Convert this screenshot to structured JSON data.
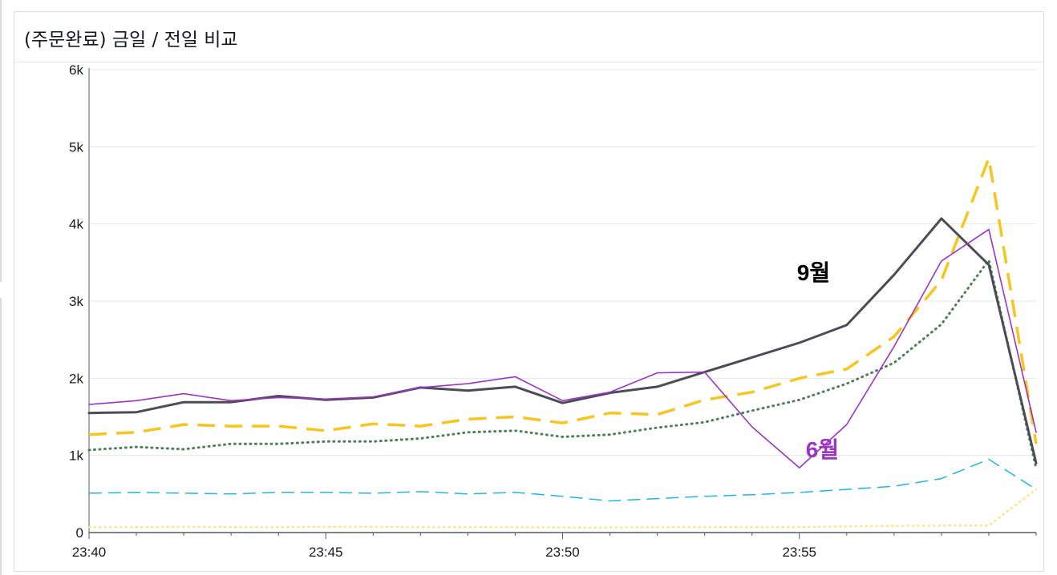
{
  "panel": {
    "title": "(주문완료) 금일 / 전일 비교"
  },
  "chart_data": {
    "type": "line",
    "title": "(주문완료) 금일 / 전일 비교",
    "xlabel": "",
    "ylabel": "",
    "x": [
      "23:40",
      "23:41",
      "23:42",
      "23:43",
      "23:44",
      "23:45",
      "23:46",
      "23:47",
      "23:48",
      "23:49",
      "23:50",
      "23:51",
      "23:52",
      "23:53",
      "23:54",
      "23:55",
      "23:56",
      "23:57",
      "23:58",
      "23:59",
      "24:00"
    ],
    "x_ticks": [
      "23:40",
      "23:45",
      "23:50",
      "23:55"
    ],
    "y_ticks": [
      {
        "value": 0,
        "label": "0"
      },
      {
        "value": 1000,
        "label": "1k"
      },
      {
        "value": 2000,
        "label": "2k"
      },
      {
        "value": 3000,
        "label": "3k"
      },
      {
        "value": 4000,
        "label": "4k"
      },
      {
        "value": 5000,
        "label": "5k"
      },
      {
        "value": 6000,
        "label": "6k"
      }
    ],
    "ylim": [
      0,
      6000
    ],
    "grid": true,
    "series": [
      {
        "color": "#fde68a",
        "style": "dotted",
        "values": [
          70,
          70,
          75,
          70,
          70,
          75,
          75,
          70,
          70,
          70,
          65,
          65,
          70,
          70,
          70,
          70,
          80,
          85,
          90,
          90,
          560
        ]
      },
      {
        "color": "#1fb6e0",
        "style": "dashed-thin",
        "values": [
          510,
          520,
          510,
          500,
          520,
          520,
          510,
          530,
          500,
          520,
          470,
          410,
          440,
          470,
          490,
          520,
          560,
          600,
          700,
          950,
          560
        ]
      },
      {
        "color": "#4b7f57",
        "style": "dotted-bold",
        "values": [
          1070,
          1110,
          1080,
          1150,
          1150,
          1180,
          1180,
          1220,
          1300,
          1320,
          1240,
          1270,
          1360,
          1430,
          1580,
          1720,
          1930,
          2200,
          2700,
          3530,
          830
        ]
      },
      {
        "color": "#f7c51d",
        "style": "dashed-bold",
        "values": [
          1270,
          1300,
          1400,
          1380,
          1380,
          1320,
          1410,
          1380,
          1470,
          1500,
          1420,
          1550,
          1530,
          1720,
          1820,
          2000,
          2120,
          2540,
          3270,
          4850,
          1150
        ]
      },
      {
        "color": "#4d4b55",
        "style": "solid-bold",
        "values": [
          1550,
          1560,
          1690,
          1690,
          1770,
          1720,
          1750,
          1880,
          1840,
          1890,
          1680,
          1810,
          1890,
          2080,
          2270,
          2460,
          2690,
          3340,
          4070,
          3470,
          900
        ]
      },
      {
        "color": "#9c35c4",
        "style": "solid-thin",
        "values": [
          1660,
          1710,
          1800,
          1710,
          1750,
          1730,
          1760,
          1880,
          1930,
          2020,
          1710,
          1820,
          2070,
          2080,
          1370,
          840,
          1400,
          2410,
          3520,
          3930,
          1300
        ]
      }
    ],
    "annotations": [
      {
        "text": "9월",
        "color": "#000000",
        "series_index": 4
      },
      {
        "text": "6월",
        "color": "#9c35c4",
        "series_index": 5
      }
    ]
  }
}
